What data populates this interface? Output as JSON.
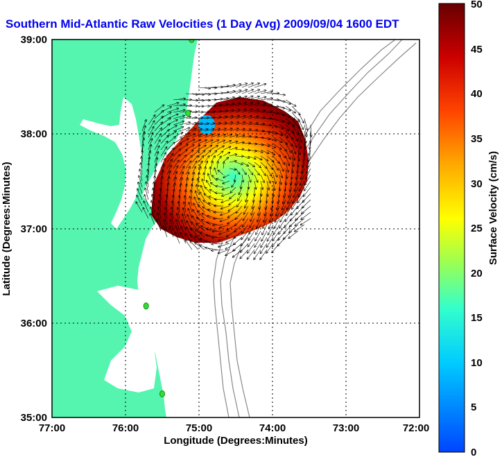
{
  "chart_data": {
    "type": "map-vector-field",
    "title": "Southern Mid-Atlantic Raw Velocities (1 Day Avg) 2009/09/04 1600 EDT",
    "xlabel": "Longitude (Degrees:Minutes)",
    "ylabel": "Latitude (Degrees:Minutes)",
    "x_ticks": [
      "77:00",
      "76:00",
      "75:00",
      "74:00",
      "73:00",
      "72:00"
    ],
    "y_ticks": [
      "39:00",
      "38:00",
      "37:00",
      "36:00",
      "35:00"
    ],
    "xlim": [
      -77,
      -72
    ],
    "ylim": [
      35,
      39
    ],
    "grid": true,
    "colorbar": {
      "label": "Surface Velocity (cm/s)",
      "range": [
        0,
        50
      ],
      "ticks": [
        "50",
        "45",
        "40",
        "35",
        "30",
        "25",
        "20",
        "15",
        "10",
        "5",
        "0"
      ],
      "colors": [
        "#0044ff",
        "#00ccff",
        "#33ffcc",
        "#99ff55",
        "#ffff00",
        "#ffaa00",
        "#ff4400",
        "#cc0000",
        "#660000"
      ]
    },
    "stations": [
      {
        "lon": -75.1,
        "lat": 39.0
      },
      {
        "lon": -75.15,
        "lat": 38.22
      },
      {
        "lon": -75.72,
        "lat": 36.18
      },
      {
        "lon": -75.5,
        "lat": 35.25
      }
    ],
    "colors": {
      "land": "#55f5b0",
      "water": "#ffffff",
      "station": "#33dd33",
      "vectors": "#000000",
      "bathymetry": "#888888"
    }
  }
}
